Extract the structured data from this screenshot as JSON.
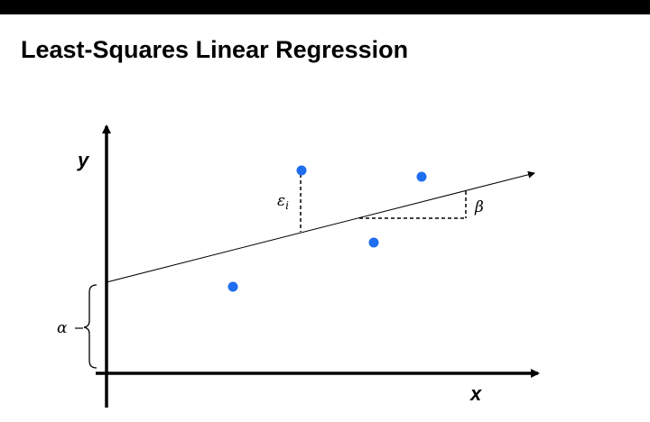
{
  "slide": {
    "title": "Least-Squares Linear Regression"
  },
  "diagram": {
    "x_label": "x",
    "y_label": "y",
    "intercept_label": "α",
    "slope_label": "β",
    "residual_label": "ε",
    "residual_subscript": "i",
    "point_color": "#1f6ef0",
    "line_color": "#000000"
  }
}
